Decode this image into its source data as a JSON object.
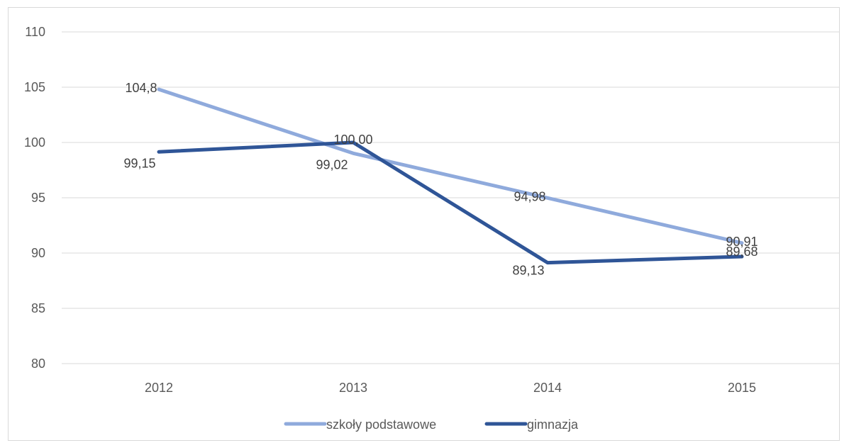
{
  "chart_data": {
    "type": "line",
    "categories": [
      "2012",
      "2013",
      "2014",
      "2015"
    ],
    "ylim": [
      80,
      110
    ],
    "yticks": [
      80,
      85,
      90,
      95,
      100,
      105,
      110
    ],
    "grid": true,
    "legend_position": "bottom",
    "series": [
      {
        "name": "szkoły podstawowe",
        "color": "#8faadc",
        "values": [
          104.8,
          99.02,
          94.98,
          90.91
        ],
        "labels": [
          "104,8",
          "99,02",
          "94,98",
          "90,91"
        ]
      },
      {
        "name": "gimnazja",
        "color": "#2f5597",
        "values": [
          99.15,
          100.0,
          89.13,
          89.68
        ],
        "labels": [
          "99,15",
          "100,00",
          "89,13",
          "89,68"
        ]
      }
    ]
  }
}
